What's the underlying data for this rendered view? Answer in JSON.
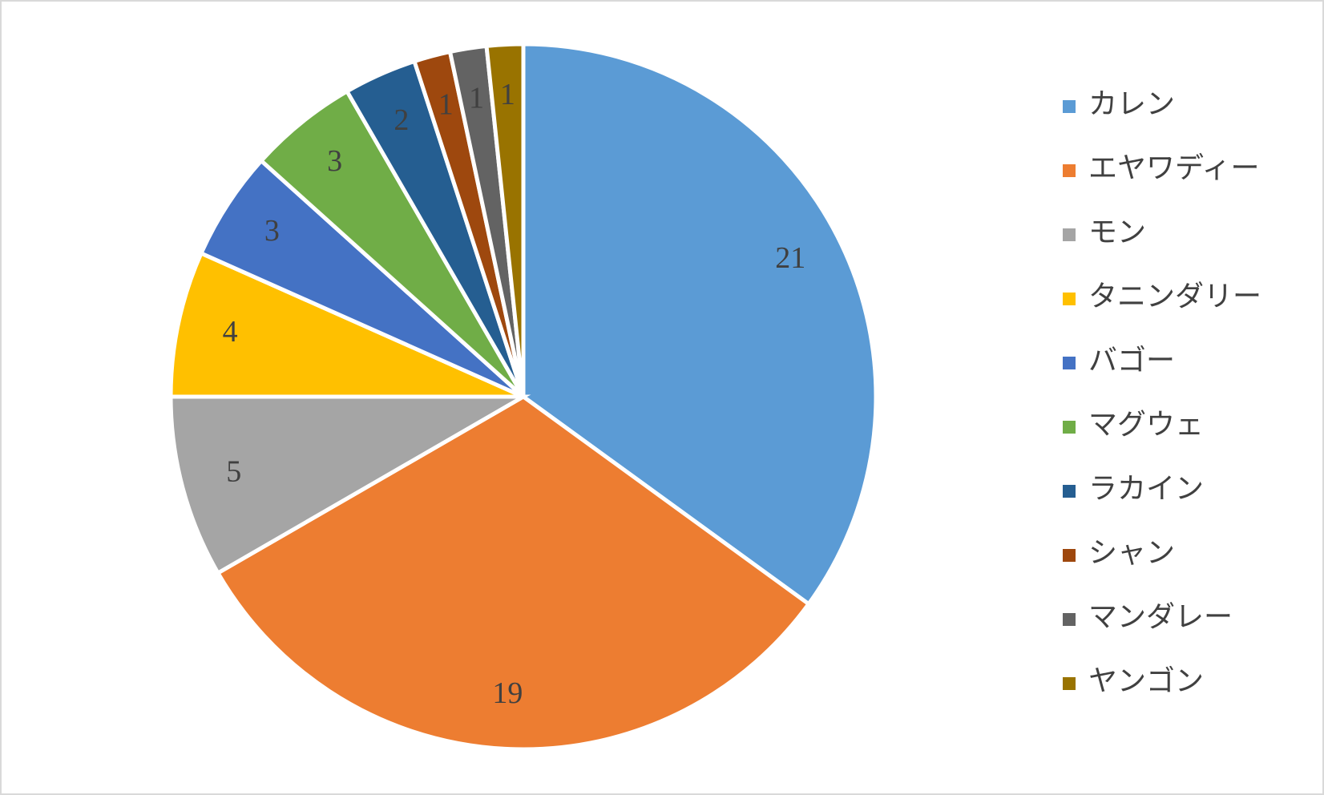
{
  "chart_data": {
    "type": "pie",
    "categories": [
      "カレン",
      "エヤワディー",
      "モン",
      "タニンダリー",
      "バゴー",
      "マグウェ",
      "ラカイン",
      "シャン",
      "マンダレー",
      "ヤンゴン"
    ],
    "values": [
      21,
      19,
      5,
      4,
      3,
      3,
      2,
      1,
      1,
      1
    ],
    "colors": [
      "#5b9bd5",
      "#ed7d31",
      "#a5a5a5",
      "#ffc000",
      "#4472c4",
      "#70ad47",
      "#255e91",
      "#9e480e",
      "#636363",
      "#997300"
    ],
    "legend": "right"
  }
}
